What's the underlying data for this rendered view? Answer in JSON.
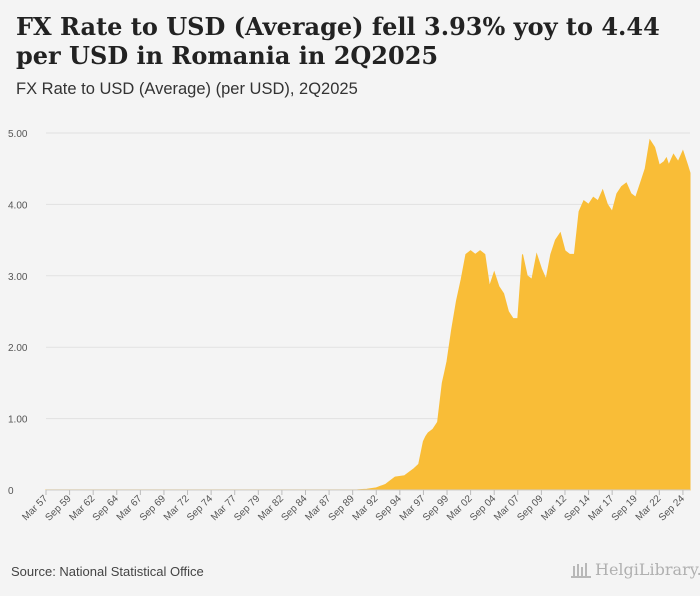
{
  "title": "FX Rate to USD (Average) fell 3.93% yoy to 4.44 per USD in Romania in 2Q2025",
  "subtitle": "FX Rate to USD (Average) (per USD), 2Q2025",
  "footer": {
    "source": "Source: National Statistical Office",
    "logo_text": "HelgiLibrary."
  },
  "colors": {
    "fill": "#f9bd37",
    "grid": "#e1e1e1",
    "background": "#f4f4f4"
  },
  "chart_data": {
    "type": "area",
    "title": "FX Rate to USD (Average) fell 3.93% yoy to 4.44 per USD in Romania in 2Q2025",
    "subtitle": "FX Rate to USD (Average) (per USD), 2Q2025",
    "xlabel": "",
    "ylabel": "",
    "ylim": [
      0,
      5
    ],
    "xlim": [
      1957.0,
      2025.25
    ],
    "y_ticks": [
      0,
      1,
      2,
      3,
      4,
      5
    ],
    "y_tick_labels": [
      "0",
      "1.00",
      "2.00",
      "3.00",
      "4.00",
      "5.00"
    ],
    "x_tick_values": [
      1957.0,
      1959.5,
      1962.0,
      1964.5,
      1967.0,
      1969.5,
      1972.0,
      1974.5,
      1977.0,
      1979.5,
      1982.0,
      1984.5,
      1987.0,
      1989.5,
      1992.0,
      1994.5,
      1997.0,
      1999.5,
      2002.0,
      2004.5,
      2007.0,
      2009.5,
      2012.0,
      2014.5,
      2017.0,
      2019.5,
      2022.0,
      2024.5
    ],
    "x_tick_labels": [
      "Mar 57",
      "Sep 59",
      "Mar 62",
      "Sep 64",
      "Mar 67",
      "Sep 69",
      "Mar 72",
      "Sep 74",
      "Mar 77",
      "Sep 79",
      "Mar 82",
      "Sep 84",
      "Mar 87",
      "Sep 89",
      "Mar 92",
      "Sep 94",
      "Mar 97",
      "Sep 99",
      "Mar 02",
      "Sep 04",
      "Mar 07",
      "Sep 09",
      "Mar 12",
      "Sep 14",
      "Mar 17",
      "Sep 19",
      "Mar 22",
      "Sep 24"
    ],
    "series": [
      {
        "name": "FX Rate to USD (Average)",
        "x": [
          1957.0,
          1985.0,
          1990.0,
          1991.0,
          1992.0,
          1993.0,
          1993.5,
          1994.0,
          1995.0,
          1995.5,
          1996.0,
          1996.5,
          1997.0,
          1997.25,
          1997.5,
          1998.0,
          1998.5,
          1999.0,
          1999.25,
          1999.5,
          2000.0,
          2000.5,
          2001.0,
          2001.5,
          2002.0,
          2002.5,
          2003.0,
          2003.5,
          2004.0,
          2004.5,
          2005.0,
          2005.5,
          2006.0,
          2006.5,
          2007.0,
          2007.5,
          2008.0,
          2008.5,
          2009.0,
          2009.5,
          2010.0,
          2010.5,
          2011.0,
          2011.5,
          2012.0,
          2012.5,
          2013.0,
          2013.5,
          2014.0,
          2014.5,
          2015.0,
          2015.5,
          2016.0,
          2016.5,
          2017.0,
          2017.5,
          2018.0,
          2018.5,
          2019.0,
          2019.5,
          2020.0,
          2020.5,
          2021.0,
          2021.5,
          2022.0,
          2022.5,
          2022.75,
          2023.0,
          2023.5,
          2024.0,
          2024.5,
          2025.0,
          2025.25
        ],
        "values": [
          0.001,
          0.001,
          0.003,
          0.01,
          0.03,
          0.08,
          0.13,
          0.18,
          0.2,
          0.25,
          0.3,
          0.36,
          0.68,
          0.75,
          0.8,
          0.85,
          0.95,
          1.5,
          1.65,
          1.8,
          2.25,
          2.65,
          2.95,
          3.3,
          3.35,
          3.3,
          3.35,
          3.3,
          2.85,
          3.05,
          2.85,
          2.75,
          2.5,
          2.4,
          2.4,
          3.3,
          3.0,
          2.95,
          3.3,
          3.1,
          2.95,
          3.3,
          3.5,
          3.6,
          3.35,
          3.3,
          3.3,
          3.9,
          4.05,
          4.0,
          4.1,
          4.05,
          4.2,
          4.0,
          3.9,
          4.15,
          4.25,
          4.3,
          4.15,
          4.1,
          4.3,
          4.5,
          4.9,
          4.8,
          4.55,
          4.6,
          4.65,
          4.55,
          4.7,
          4.6,
          4.75,
          4.55,
          4.44
        ]
      }
    ]
  }
}
